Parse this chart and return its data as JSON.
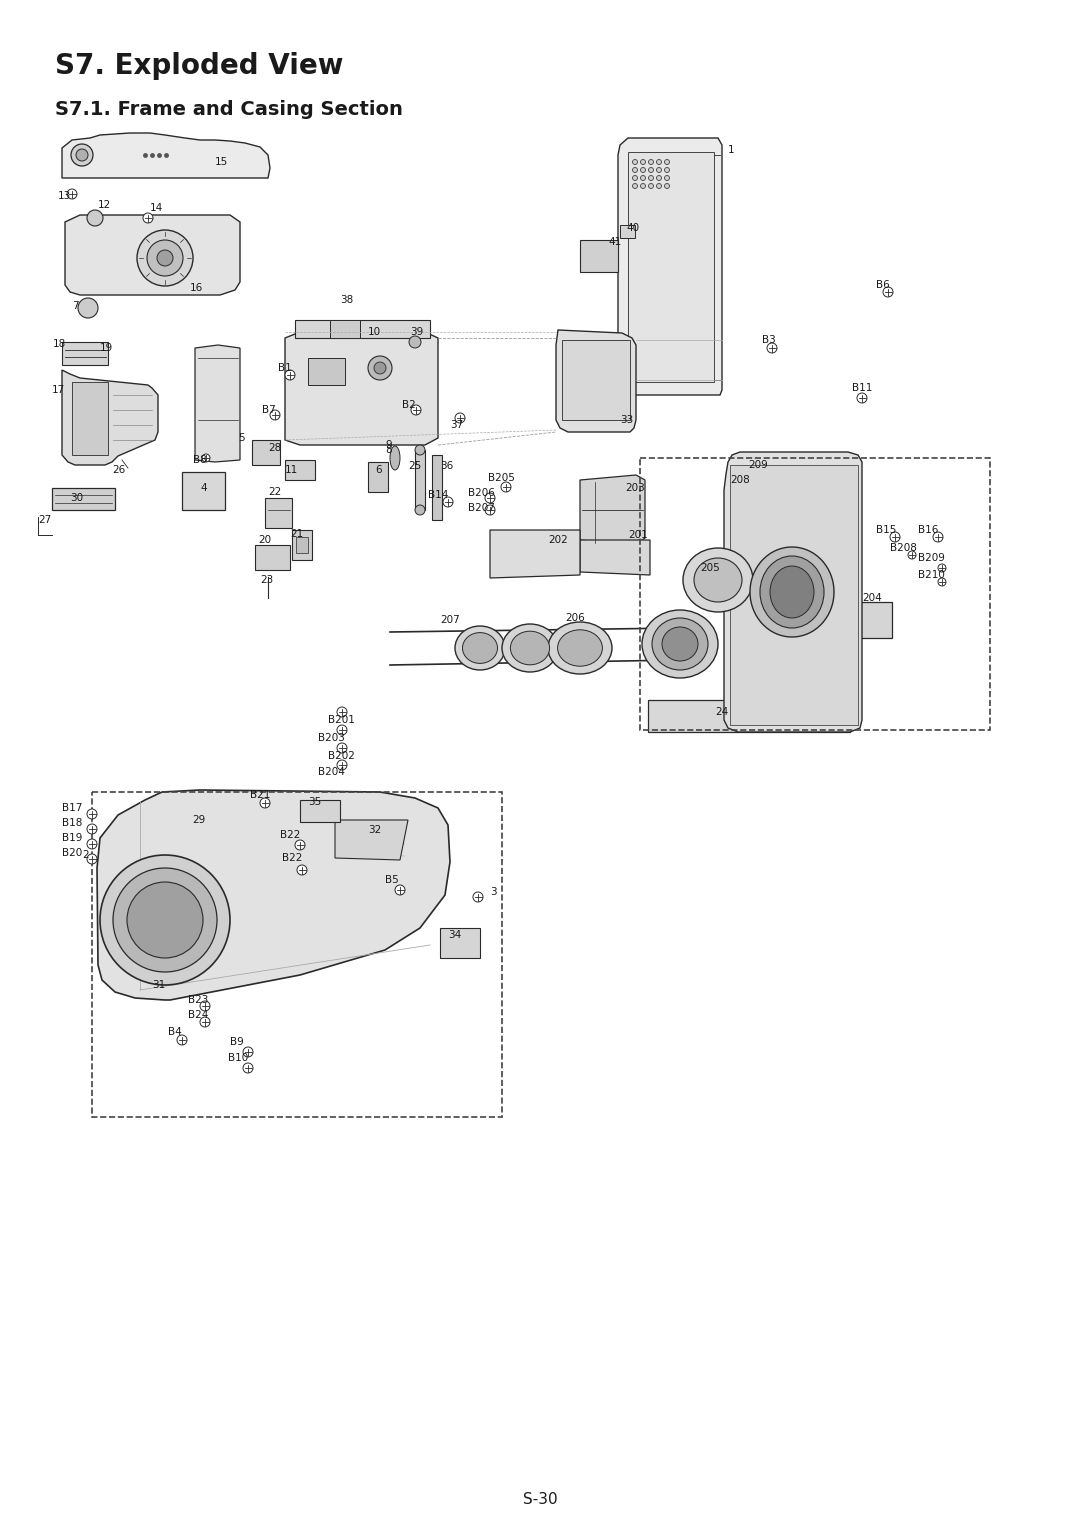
{
  "title": "S7. Exploded View",
  "subtitle": "S7.1. Frame and Casing Section",
  "footer": "S-30",
  "bg_color": "#ffffff",
  "title_fontsize": 20,
  "subtitle_fontsize": 14,
  "footer_fontsize": 11,
  "line_color": "#2a2a2a",
  "text_color": "#1a1a1a",
  "label_fontsize": 7.5
}
